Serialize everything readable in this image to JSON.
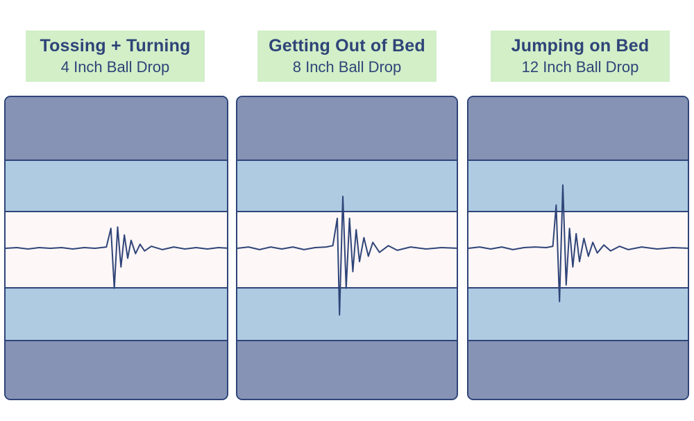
{
  "chart_data": [
    {
      "type": "line",
      "title": "Tossing + Turning",
      "subtitle": "4 Inch Ball Drop",
      "x": [
        0,
        0.05,
        0.1,
        0.15,
        0.2,
        0.25,
        0.3,
        0.35,
        0.4,
        0.45,
        0.47,
        0.485,
        0.5,
        0.515,
        0.53,
        0.545,
        0.56,
        0.58,
        0.6,
        0.62,
        0.65,
        0.7,
        0.75,
        0.8,
        0.85,
        0.9,
        0.95,
        1.0
      ],
      "values": [
        0,
        0.01,
        -0.01,
        0.01,
        0,
        0.01,
        -0.01,
        0.01,
        0,
        0.02,
        0.3,
        -0.6,
        0.32,
        -0.28,
        0.2,
        -0.15,
        0.12,
        -0.08,
        0.06,
        -0.04,
        0.03,
        -0.02,
        0.02,
        -0.01,
        0.01,
        -0.01,
        0.01,
        0
      ],
      "ylim": [
        -1,
        1
      ]
    },
    {
      "type": "line",
      "title": "Getting Out of Bed",
      "subtitle": "8 Inch Ball Drop",
      "x": [
        0,
        0.05,
        0.1,
        0.15,
        0.2,
        0.25,
        0.3,
        0.35,
        0.4,
        0.43,
        0.45,
        0.46,
        0.475,
        0.49,
        0.505,
        0.52,
        0.535,
        0.55,
        0.57,
        0.59,
        0.61,
        0.64,
        0.68,
        0.72,
        0.78,
        0.85,
        0.92,
        1.0
      ],
      "values": [
        0,
        0.02,
        -0.02,
        0.02,
        -0.01,
        0.02,
        -0.02,
        0.01,
        0.02,
        0.04,
        0.45,
        -1.0,
        0.78,
        -0.6,
        0.45,
        -0.35,
        0.28,
        -0.2,
        0.16,
        -0.12,
        0.09,
        -0.06,
        0.04,
        -0.03,
        0.02,
        -0.01,
        0.01,
        0
      ],
      "ylim": [
        -1.1,
        1.1
      ]
    },
    {
      "type": "line",
      "title": "Jumping on Bed",
      "subtitle": "12 Inch Ball Drop",
      "x": [
        0,
        0.05,
        0.1,
        0.15,
        0.2,
        0.25,
        0.3,
        0.35,
        0.38,
        0.395,
        0.41,
        0.425,
        0.44,
        0.455,
        0.47,
        0.485,
        0.5,
        0.52,
        0.54,
        0.56,
        0.58,
        0.61,
        0.64,
        0.68,
        0.72,
        0.78,
        0.85,
        0.92,
        1.0
      ],
      "values": [
        0,
        0.02,
        -0.01,
        0.02,
        -0.02,
        0.01,
        0.02,
        0.01,
        0.03,
        0.65,
        -0.8,
        0.95,
        -0.55,
        0.3,
        -0.28,
        0.22,
        -0.2,
        0.15,
        -0.12,
        0.09,
        -0.07,
        0.05,
        -0.04,
        0.03,
        -0.02,
        0.02,
        -0.01,
        0.01,
        0
      ],
      "ylim": [
        -1.1,
        1.1
      ]
    }
  ],
  "colors": {
    "header_bg": "#d2efc8",
    "text": "#2f4478",
    "outline": "#2f4478",
    "outer_band": "#8793b5",
    "middle_band": "#aecbe2",
    "center_band": "#fdf7f7",
    "wave": "#2f4478"
  }
}
